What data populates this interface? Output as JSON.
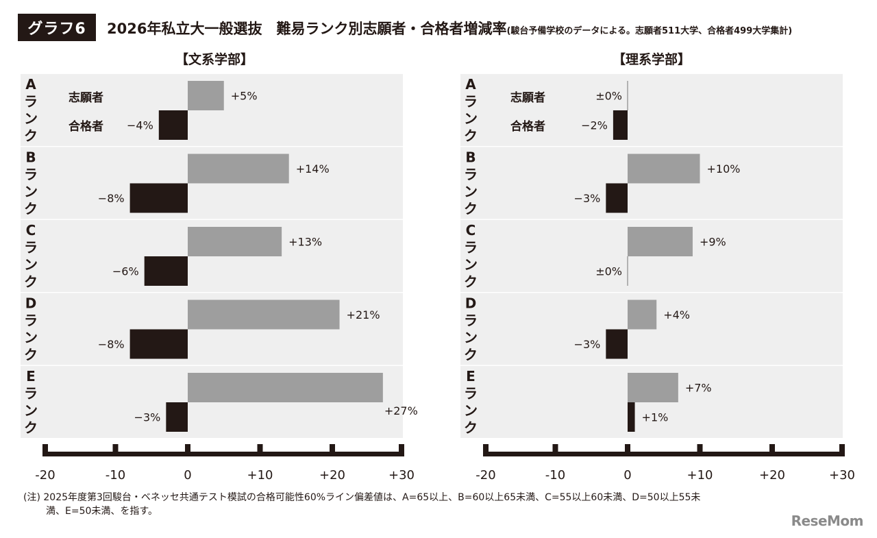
{
  "badge": "グラフ6",
  "title_main": "2026年私立大一般選抜　難易ランク別志願者・合格者増減率",
  "title_sub": "(駿台予備学校のデータによる。志願者511大学、合格者499大学集計)",
  "note_line1": "(注) 2025年度第3回駿台・ベネッセ共通テスト模試の合格可能性60%ライン偏差値は、A=65以上、B=60以上65未満、C=55以上60未満、D=50以上55未",
  "note_line2": "満、E=50未満、を指す。",
  "logo": "ReseMom",
  "chart_data": {
    "type": "bar",
    "orientation": "horizontal",
    "legend": [
      "志願者",
      "合格者"
    ],
    "colors": {
      "志願者": "#9e9e9e",
      "合格者": "#231815",
      "band": "#efefef"
    },
    "xlim": [
      -20,
      30
    ],
    "xticks": [
      -20,
      -10,
      0,
      10,
      20,
      30
    ],
    "xtick_labels": [
      "-20",
      "-10",
      "0",
      "+10",
      "+20",
      "+30"
    ],
    "panels": [
      {
        "title": "【文系学部】",
        "ranks": [
          {
            "label": "Aランク",
            "applicants": 5,
            "applicants_label": "+5%",
            "passers": -4,
            "passers_label": "−4%"
          },
          {
            "label": "Bランク",
            "applicants": 14,
            "applicants_label": "+14%",
            "passers": -8,
            "passers_label": "−8%"
          },
          {
            "label": "Cランク",
            "applicants": 13,
            "applicants_label": "+13%",
            "passers": -6,
            "passers_label": "−6%"
          },
          {
            "label": "Dランク",
            "applicants": 21,
            "applicants_label": "+21%",
            "passers": -8,
            "passers_label": "−8%"
          },
          {
            "label": "Eランク",
            "applicants": 27,
            "applicants_label": "+27%",
            "passers": -3,
            "passers_label": "−3%"
          }
        ]
      },
      {
        "title": "【理系学部】",
        "ranks": [
          {
            "label": "Aランク",
            "applicants": 0,
            "applicants_label": "±0%",
            "passers": -2,
            "passers_label": "−2%"
          },
          {
            "label": "Bランク",
            "applicants": 10,
            "applicants_label": "+10%",
            "passers": -3,
            "passers_label": "−3%"
          },
          {
            "label": "Cランク",
            "applicants": 9,
            "applicants_label": "+9%",
            "passers": 0,
            "passers_label": "±0%"
          },
          {
            "label": "Dランク",
            "applicants": 4,
            "applicants_label": "+4%",
            "passers": -3,
            "passers_label": "−3%"
          },
          {
            "label": "Eランク",
            "applicants": 7,
            "applicants_label": "+7%",
            "passers": 1,
            "passers_label": "+1%"
          }
        ]
      }
    ]
  }
}
